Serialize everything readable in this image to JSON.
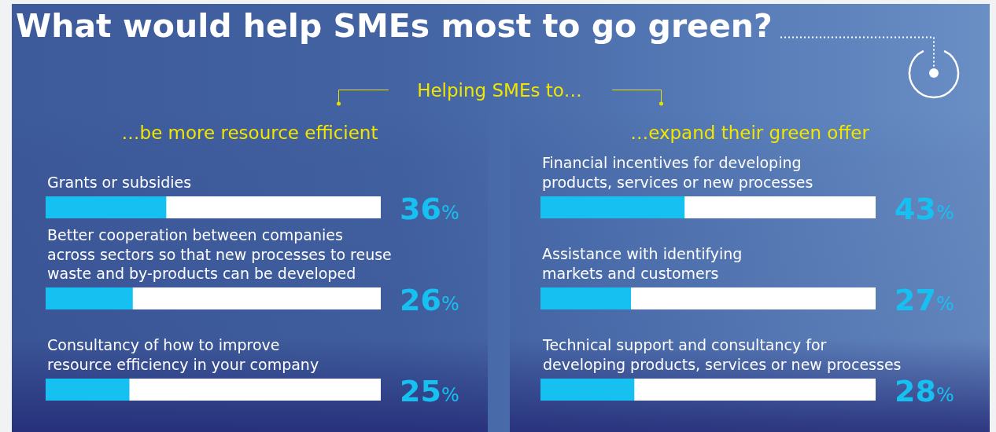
{
  "chart_data": [
    {
      "type": "other",
      "title": "What would help SMEs most to go green?",
      "subtitle": "Helping SMEs to…"
    },
    {
      "type": "bar",
      "orientation": "horizontal",
      "title": "…be more resource efficient",
      "categories": [
        "Grants or subsidies",
        "Better cooperation between companies across sectors so that new processes to reuse waste and by-products can be developed",
        "Consultancy of how to improve resource efficiency in your company"
      ],
      "values": [
        36,
        26,
        25
      ],
      "value_labels": [
        "36%",
        "26%",
        "25%"
      ],
      "color": "#16c1f2",
      "xlim": [
        0,
        100
      ],
      "tick_labels": "y"
    },
    {
      "type": "bar",
      "orientation": "horizontal",
      "title": "…expand their green offer",
      "categories": [
        "Financial incentives for developing products, services or new processes",
        "Assistance with identifying markets and customers",
        "Technical support and consultancy for developing products, services or new processes"
      ],
      "values": [
        43,
        27,
        28
      ],
      "value_labels": [
        "43%",
        "27%",
        "28%"
      ],
      "color": "#16c1f2",
      "xlim": [
        0,
        100
      ],
      "tick_labels": "y"
    }
  ]
}
